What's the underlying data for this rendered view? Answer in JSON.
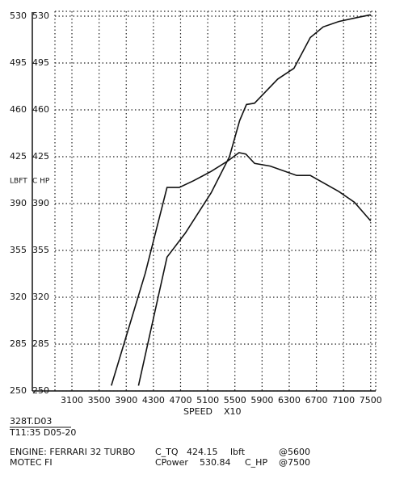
{
  "chart_data": {
    "type": "line",
    "y_axis_label": "LBFT",
    "y2_axis_label": "C  HP",
    "x_axis_label": "SPEED",
    "x_axis_unit": "X10",
    "xlim": [
      2850,
      7550
    ],
    "xticks": [
      3100,
      3500,
      3900,
      4300,
      4700,
      5100,
      5500,
      5900,
      6300,
      6700,
      7100,
      7500
    ],
    "ylim": [
      250,
      530
    ],
    "yticks": [
      250,
      285,
      320,
      355,
      390,
      425,
      460,
      495,
      530
    ],
    "y2lim": [
      250,
      530
    ],
    "y2ticks": [
      250,
      285,
      320,
      355,
      390,
      425,
      460,
      495,
      530
    ],
    "grid": true,
    "series": [
      {
        "color": "#111111",
        "axis": "y",
        "x": [
          3680,
          4180,
          4500,
          4680,
          4890,
          5150,
          5400,
          5560,
          5660,
          5790,
          6020,
          6410,
          6610,
          7030,
          7260,
          7500
        ],
        "values": [
          254,
          338,
          402,
          402,
          407,
          414,
          422,
          428,
          427,
          420,
          418,
          411,
          411,
          399,
          391,
          377
        ]
      },
      {
        "color": "#111111",
        "axis": "y2",
        "x": [
          4080,
          4500,
          4770,
          5150,
          5420,
          5570,
          5670,
          5790,
          6130,
          6370,
          6610,
          6800,
          7030,
          7300,
          7500
        ],
        "values": [
          254,
          350,
          368,
          398,
          425,
          452,
          464,
          465,
          483,
          491,
          514,
          522,
          526,
          529,
          531
        ]
      }
    ]
  },
  "footer": {
    "file": "328T.D03",
    "stamp": "T11:35 D05-20",
    "engine": "ENGINE: FERRARI 32 TURBO",
    "fuel": "MOTEC FI",
    "tq_label": "C_TQ",
    "tq_value": "424.15",
    "tq_unit": "lbft",
    "tq_rpm": "@5600",
    "hp_label": "CPower",
    "hp_value": "530.84",
    "hp_unit": "C_HP",
    "hp_rpm": "@7500"
  }
}
